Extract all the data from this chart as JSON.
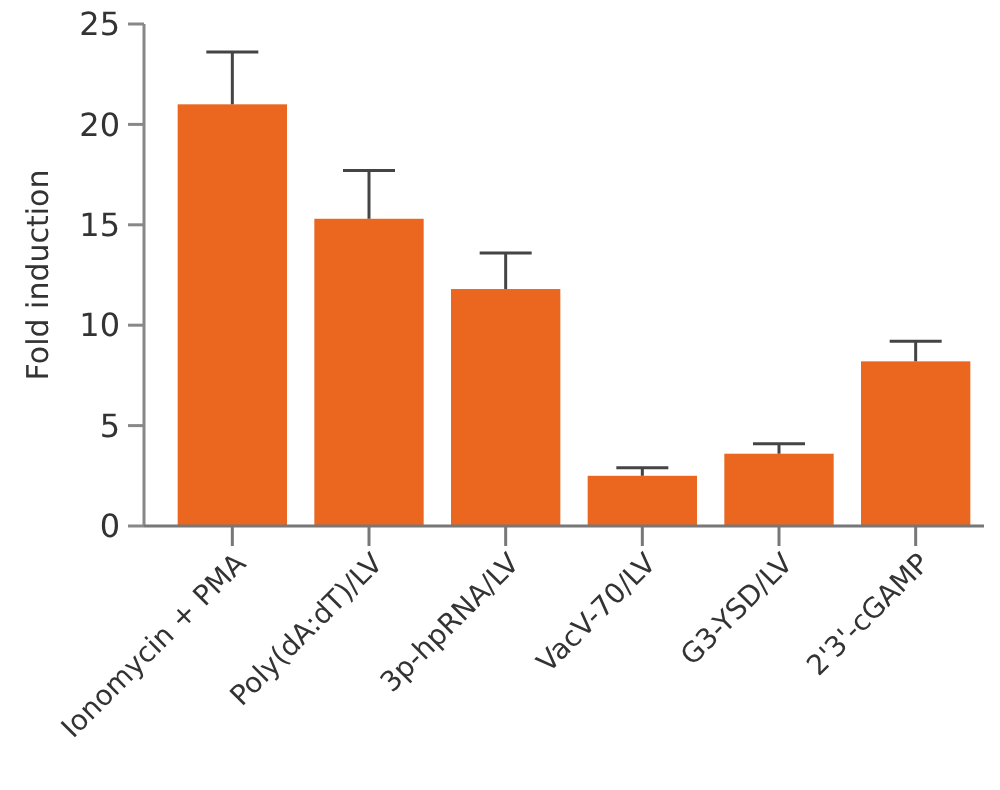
{
  "chart_data": {
    "type": "bar",
    "ylabel": "Fold induction",
    "categories": [
      "Ionomycin + PMA",
      "Poly(dA:dT)/LV",
      "3p-hpRNA/LV",
      "VacV-70/LV",
      "G3-YSD/LV",
      "2'3'-cGAMP"
    ],
    "values": [
      21.0,
      15.3,
      11.8,
      2.5,
      3.6,
      8.2
    ],
    "errors": [
      [
        21.0,
        23.6
      ],
      [
        15.3,
        17.7
      ],
      [
        11.8,
        13.6
      ],
      [
        2.5,
        2.9
      ],
      [
        3.6,
        4.1
      ],
      [
        8.2,
        9.2
      ]
    ],
    "color": "#eb661e",
    "ylim": [
      0,
      25
    ],
    "yticks": [
      0,
      5,
      10,
      15,
      20,
      25
    ],
    "grid": false
  }
}
